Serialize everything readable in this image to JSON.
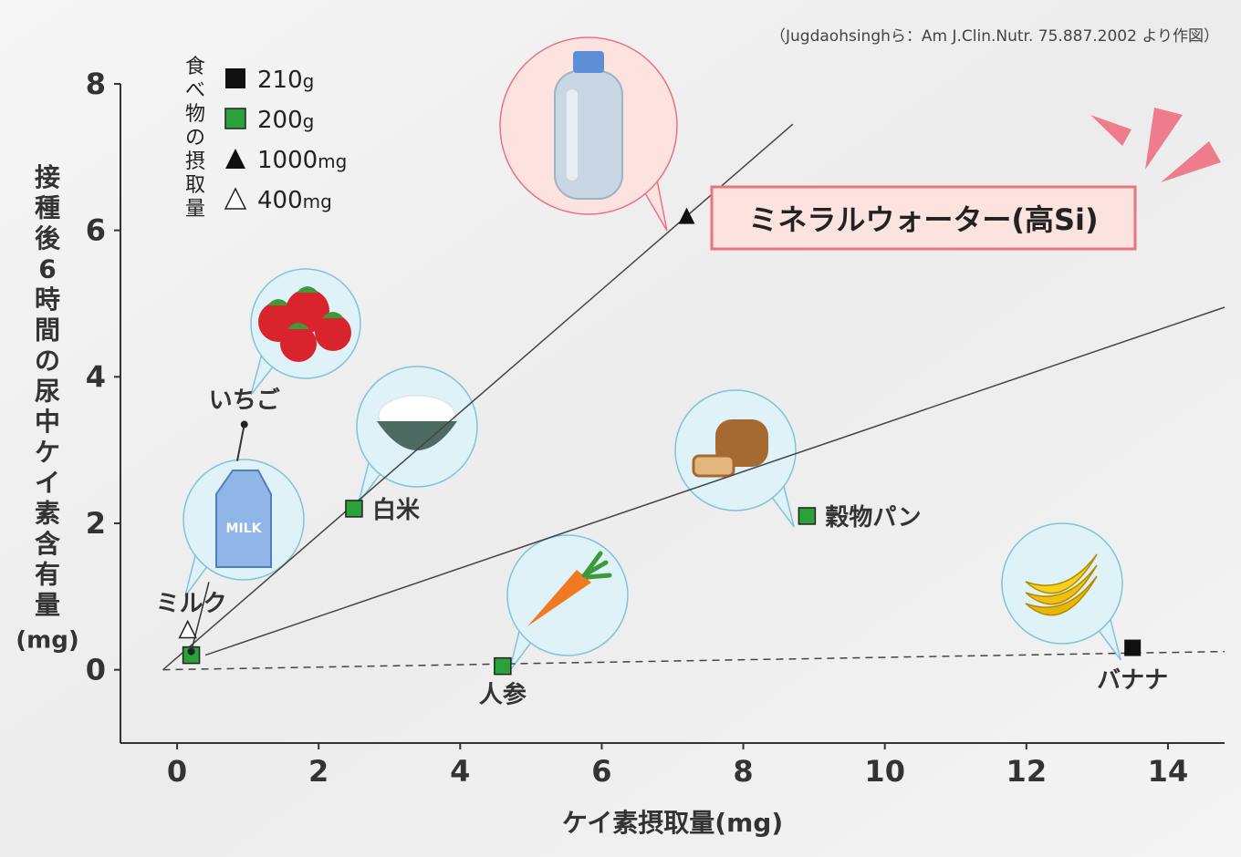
{
  "source": "（Jugdaohsinghら：Am J.Clin.Nutr. 75.887.2002 より作図）",
  "callout": "ミネラルウォーター(高Si)",
  "legend_title": "食べ物の摂取量",
  "legend": [
    {
      "marker": "square-black",
      "num": "210",
      "unit": "g"
    },
    {
      "marker": "square-green",
      "num": "200",
      "unit": "g"
    },
    {
      "marker": "triangle-filled",
      "num": "1000",
      "unit": "mg"
    },
    {
      "marker": "triangle-open",
      "num": "400",
      "unit": "mg"
    }
  ],
  "colors": {
    "green": "#2ca13a",
    "callout_bg": "#fde3df",
    "callout_border": "#e97381",
    "bubble": "#dff2f8",
    "bubble_border": "#7fc4dc",
    "accent": "#ef7c8c"
  },
  "chart_data": {
    "type": "scatter",
    "xlabel": "ケイ素摂取量(mg)",
    "ylabel": "接種後6時間の尿中ケイ素含有量",
    "ylabel_unit": "(mg)",
    "xlim": [
      -0.8,
      14.8
    ],
    "ylim": [
      -1.0,
      8.0
    ],
    "xticks": [
      "0",
      "2",
      "4",
      "6",
      "8",
      "10",
      "12",
      "14"
    ],
    "yticks": [
      "0",
      "2",
      "4",
      "6",
      "8"
    ],
    "points": [
      {
        "label": "ミネラルウォーター(高Si)",
        "x": 7.2,
        "y": 6.2,
        "marker": "triangle-filled"
      },
      {
        "label": "いちご",
        "x": 0.95,
        "y": 3.35,
        "marker": "dot"
      },
      {
        "label": "白米",
        "x": 2.5,
        "y": 2.2,
        "marker": "square-green"
      },
      {
        "label": "穀物パン",
        "x": 8.9,
        "y": 2.1,
        "marker": "square-green"
      },
      {
        "label": "ミルク",
        "x": 0.15,
        "y": 0.55,
        "marker": "triangle-open"
      },
      {
        "label": "",
        "x": 0.2,
        "y": 0.2,
        "marker": "square-green"
      },
      {
        "label": "",
        "x": 0.2,
        "y": 0.25,
        "marker": "dot"
      },
      {
        "label": "人参",
        "x": 4.6,
        "y": 0.05,
        "marker": "square-green"
      },
      {
        "label": "バナナ",
        "x": 13.5,
        "y": 0.3,
        "marker": "square-black"
      }
    ],
    "trend_lines": [
      {
        "x1": -0.2,
        "y1": 0.0,
        "x2": 8.7,
        "y2": 7.45,
        "style": "solid"
      },
      {
        "x1": 0.4,
        "y1": 0.2,
        "x2": 14.8,
        "y2": 4.95,
        "style": "solid"
      },
      {
        "x1": -0.2,
        "y1": 0.0,
        "x2": 14.8,
        "y2": 0.25,
        "style": "dashed"
      }
    ],
    "grid": false
  }
}
